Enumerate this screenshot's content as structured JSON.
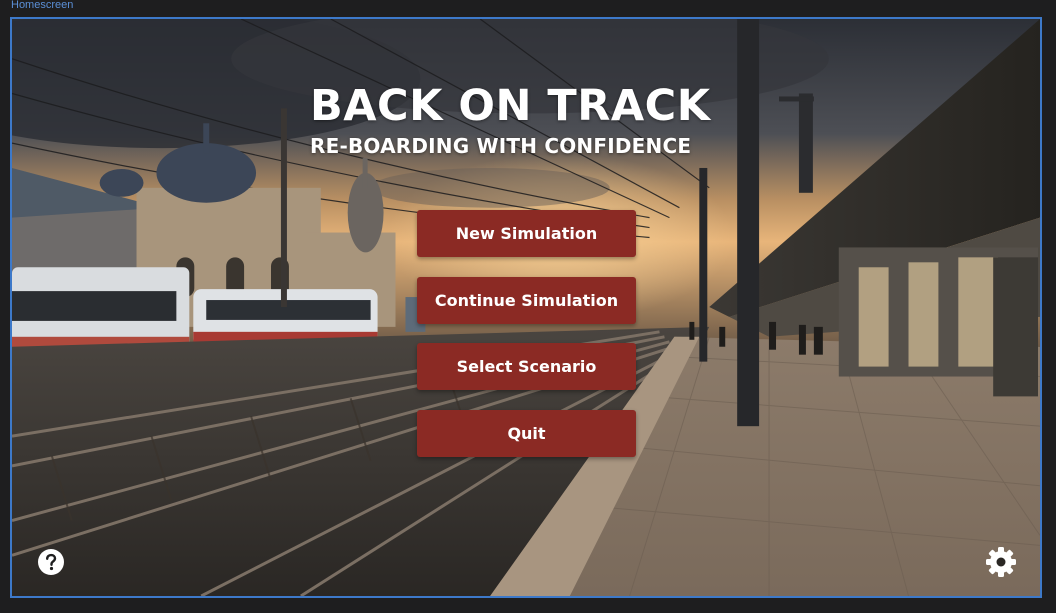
{
  "window": {
    "label": "Homescreen"
  },
  "title": {
    "main": "BACK ON TRACK",
    "subtitle": "RE-BOARDING WITH CONFIDENCE"
  },
  "menu": {
    "buttons": [
      {
        "label": "New Simulation"
      },
      {
        "label": "Continue Simulation"
      },
      {
        "label": "Select Scenario"
      },
      {
        "label": "Quit"
      }
    ]
  },
  "icons": {
    "help": "help-circle-icon",
    "settings": "gear-icon"
  },
  "colors": {
    "button_bg": "#8b2a24",
    "frame_border": "#3d79c9",
    "label_text": "#5b8fd6"
  }
}
